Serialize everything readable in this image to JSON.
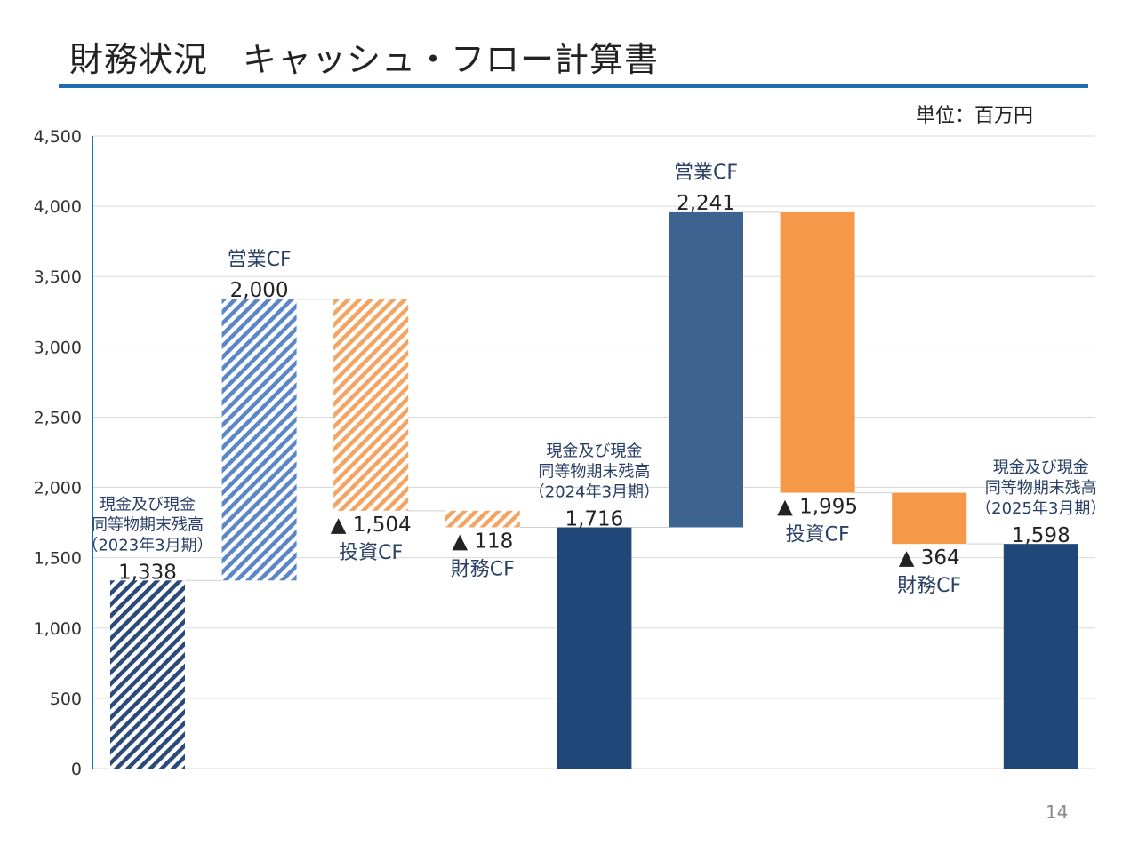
{
  "header": {
    "title": "財務状況　キャッシュ・フロー計算書",
    "unit": "単位：百万円",
    "page_number": "14"
  },
  "chart_data": {
    "type": "bar",
    "subtype": "waterfall",
    "ylim": [
      0,
      4500
    ],
    "yticks": [
      0,
      500,
      1000,
      1500,
      2000,
      2500,
      3000,
      3500,
      4000,
      4500
    ],
    "grid": true,
    "steps": [
      {
        "kind": "balance",
        "label_lines": [
          "現金及び現金",
          "同等物期末残高",
          "（2023年3月期）"
        ],
        "value": 1338,
        "value_label": "1,338",
        "color": "#2b4a7a",
        "hatched": true
      },
      {
        "kind": "change",
        "label": "営業CF",
        "value": 2000,
        "value_label": "2,000",
        "color": "#5b87c7",
        "hatched": true
      },
      {
        "kind": "change",
        "label": "投資CF",
        "value": -1504,
        "value_label": "▲ 1,504",
        "color": "#f4a460",
        "hatched": true
      },
      {
        "kind": "change",
        "label": "財務CF",
        "value": -118,
        "value_label": "▲ 118",
        "color": "#f4a460",
        "hatched": true
      },
      {
        "kind": "balance",
        "label_lines": [
          "現金及び現金",
          "同等物期末残高",
          "（2024年3月期）"
        ],
        "value": 1716,
        "value_label": "1,716",
        "color": "#1f4778",
        "hatched": false
      },
      {
        "kind": "change",
        "label": "営業CF",
        "value": 2241,
        "value_label": "2,241",
        "color": "#3d6390",
        "hatched": false
      },
      {
        "kind": "change",
        "label": "投資CF",
        "value": -1995,
        "value_label": "▲ 1,995",
        "color": "#f59847",
        "hatched": false
      },
      {
        "kind": "change",
        "label": "財務CF",
        "value": -364,
        "value_label": "▲ 364",
        "color": "#f59847",
        "hatched": false
      },
      {
        "kind": "balance",
        "label_lines": [
          "現金及び現金",
          "同等物期末残高",
          "（2025年3月期）"
        ],
        "value": 1598,
        "value_label": "1,598",
        "color": "#1f4778",
        "hatched": false
      }
    ]
  }
}
